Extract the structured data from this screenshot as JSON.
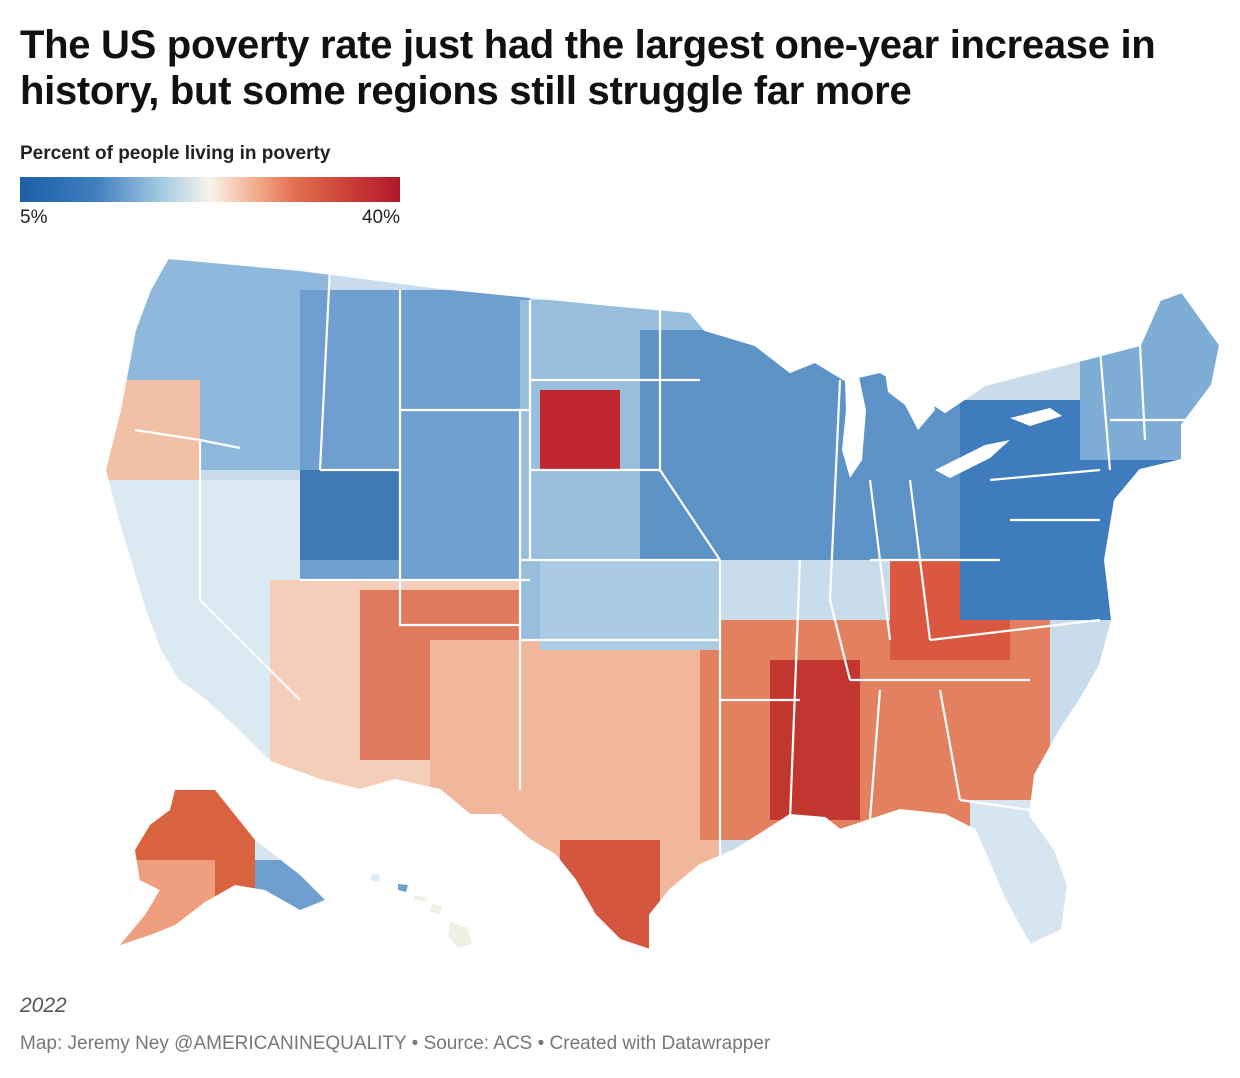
{
  "title": "The US poverty rate just had the largest one-year increase in history, but some regions still struggle far more",
  "legend": {
    "title": "Percent of people living in poverty",
    "min_label": "5%",
    "max_label": "40%",
    "min_value": 5,
    "max_value": 40
  },
  "colors": {
    "low": "#1b5fa8",
    "mid_low": "#a9cde4",
    "mid": "#f7f4ea",
    "mid_high": "#e4704f",
    "high": "#b1182b"
  },
  "year": "2022",
  "credits": "Map: Jeremy Ney @AMERICANINEQUALITY • Source: ACS • Created with Datawrapper"
}
